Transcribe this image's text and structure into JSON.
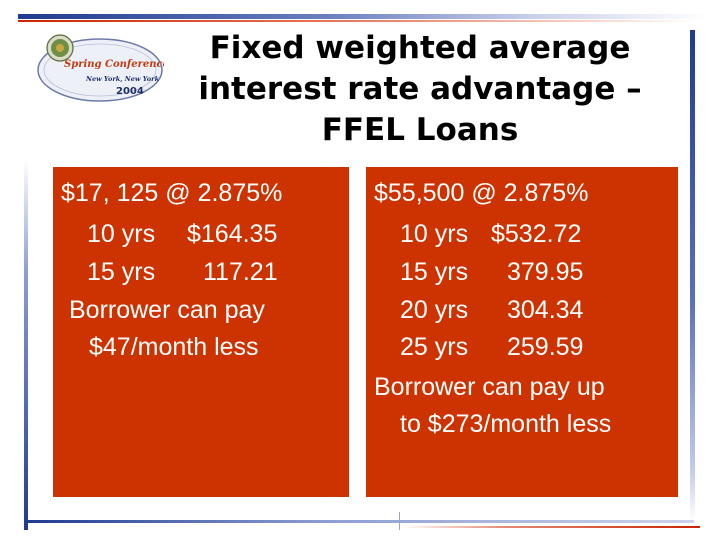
{
  "logo": {
    "line1": "Spring Conference",
    "line2": "New York, New York",
    "year": "2004",
    "icon": "conference-seal-icon"
  },
  "title": {
    "lines": [
      "Fixed weighted average",
      "interest rate advantage –",
      "FFEL Loans"
    ]
  },
  "left_box": {
    "header": "$17, 125 @ 2.875%",
    "rows": [
      {
        "term": "10 yrs",
        "amount": "$164.35"
      },
      {
        "term": "15 yrs",
        "amount": "117.21"
      }
    ],
    "note_lines": [
      "Borrower can pay",
      "$47/month less"
    ]
  },
  "right_box": {
    "header": "$55,500 @ 2.875%",
    "rows": [
      {
        "term": "10 yrs",
        "amount": "$532.72"
      },
      {
        "term": "15 yrs",
        "amount": "379.95"
      },
      {
        "term": "20 yrs",
        "amount": "304.34"
      },
      {
        "term": "25 yrs",
        "amount": "259.59"
      }
    ],
    "note_lines": [
      "Borrower can pay up",
      "to $273/month less"
    ]
  },
  "colors": {
    "box_fill": "#cc3300",
    "accent_blue": "#1f3a8f",
    "accent_red": "#cc2200"
  }
}
